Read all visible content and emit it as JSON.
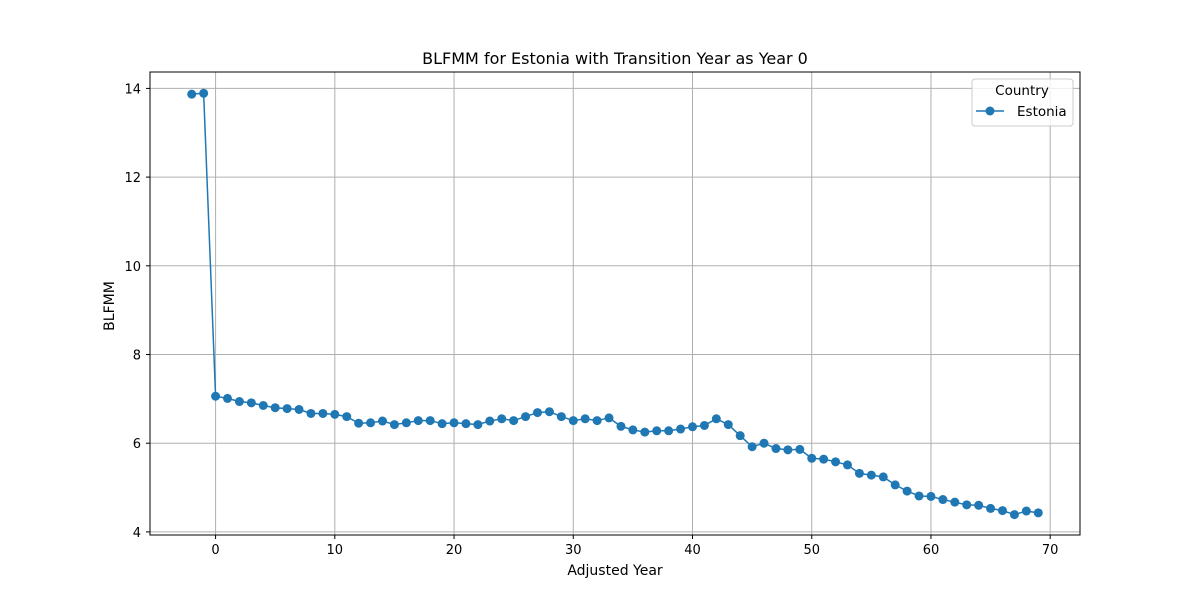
{
  "chart_data": {
    "type": "line",
    "title": "BLFMM for Estonia with Transition Year as Year 0",
    "xlabel": "Adjusted Year",
    "ylabel": "BLFMM",
    "xlim": [
      -5.5,
      72.5
    ],
    "ylim": [
      3.93,
      14.37
    ],
    "xticks": [
      0,
      10,
      20,
      30,
      40,
      50,
      60,
      70
    ],
    "yticks": [
      4,
      6,
      8,
      10,
      12,
      14
    ],
    "grid": true,
    "legend": {
      "title": "Country",
      "placement": "top-right"
    },
    "series": [
      {
        "name": "Estonia",
        "color": "#1f77b4",
        "marker": "circle",
        "x": [
          -2,
          -1,
          0,
          1,
          2,
          3,
          4,
          5,
          6,
          7,
          8,
          9,
          10,
          11,
          12,
          13,
          14,
          15,
          16,
          17,
          18,
          19,
          20,
          21,
          22,
          23,
          24,
          25,
          26,
          27,
          28,
          29,
          30,
          31,
          32,
          33,
          34,
          35,
          36,
          37,
          38,
          39,
          40,
          41,
          42,
          43,
          44,
          45,
          46,
          47,
          48,
          49,
          50,
          51,
          52,
          53,
          54,
          55,
          56,
          57,
          58,
          59,
          60,
          61,
          62,
          63,
          64,
          65,
          66,
          67,
          68,
          69
        ],
        "y": [
          13.87,
          13.89,
          7.06,
          7.01,
          6.94,
          6.91,
          6.85,
          6.8,
          6.78,
          6.76,
          6.67,
          6.67,
          6.65,
          6.6,
          6.45,
          6.46,
          6.5,
          6.42,
          6.46,
          6.51,
          6.51,
          6.44,
          6.46,
          6.44,
          6.42,
          6.5,
          6.55,
          6.51,
          6.6,
          6.69,
          6.71,
          6.6,
          6.51,
          6.55,
          6.51,
          6.57,
          6.38,
          6.3,
          6.25,
          6.28,
          6.28,
          6.32,
          6.37,
          6.4,
          6.55,
          6.42,
          6.17,
          5.92,
          6.0,
          5.88,
          5.85,
          5.86,
          5.66,
          5.64,
          5.58,
          5.51,
          5.32,
          5.28,
          5.24,
          5.06,
          4.92,
          4.81,
          4.8,
          4.73,
          4.67,
          4.61,
          4.6,
          4.53,
          4.48,
          4.39,
          4.47,
          4.43
        ]
      }
    ]
  }
}
